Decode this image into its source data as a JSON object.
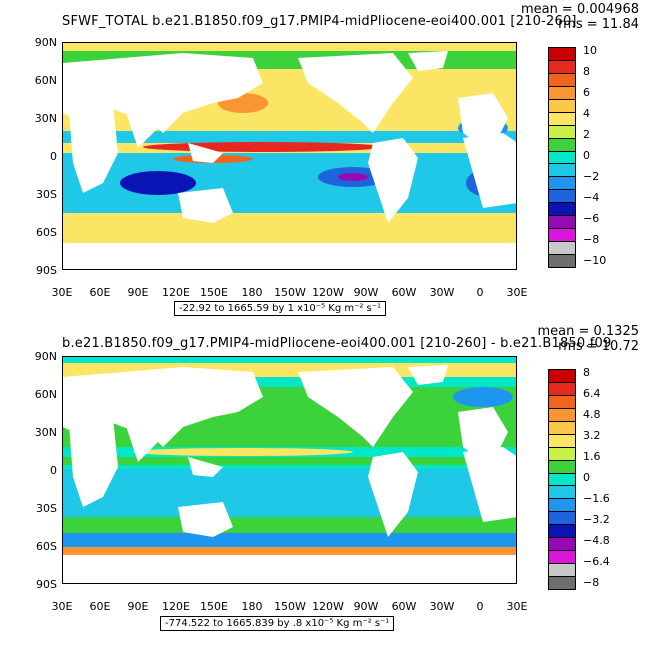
{
  "panels": [
    {
      "title": "SFWF_TOTAL  b.e21.B1850.f09_g17.PMIP4-midPliocene-eoi400.001  [210-260]",
      "mean": "mean = 0.004968",
      "rms": "rms = 11.84",
      "info": "-22.92 to 1665.59 by 1 x10⁻⁵ Kg m⁻² s⁻¹",
      "colorbar_labels": [
        "10",
        "8",
        "6",
        "4",
        "2",
        "0",
        "−2",
        "−4",
        "−6",
        "−8",
        "−10"
      ],
      "colors": [
        "#c80000",
        "#e6281e",
        "#f0641e",
        "#fa9632",
        "#fac846",
        "#fae664",
        "#c8f046",
        "#3cd23c",
        "#00e6c8",
        "#1ec8e6",
        "#1e96f0",
        "#1e64dc",
        "#0a14b4",
        "#960ab4",
        "#dc14dc",
        "#c8c8c8",
        "#6e6e6e"
      ]
    },
    {
      "title": "b.e21.B1850.f09_g17.PMIP4-midPliocene-eoi400.001  [210-260] - b.e21.B1850.f09",
      "mean": "mean = 0.1325",
      "rms": "rms = 10.72",
      "info": "-774.522 to 1665.839 by .8 x10⁻⁵ Kg m⁻² s⁻¹",
      "colorbar_labels": [
        "8",
        "6.4",
        "4.8",
        "3.2",
        "1.6",
        "0",
        "−1.6",
        "−3.2",
        "−4.8",
        "−6.4",
        "−8"
      ],
      "colors": [
        "#c80000",
        "#e6281e",
        "#f0641e",
        "#fa9632",
        "#fac846",
        "#fae664",
        "#c8f046",
        "#3cd23c",
        "#00e6c8",
        "#1ec8e6",
        "#1e96f0",
        "#1e64dc",
        "#0a14b4",
        "#960ab4",
        "#dc14dc",
        "#c8c8c8",
        "#6e6e6e"
      ]
    }
  ],
  "axes": {
    "y_labels": [
      "90N",
      "60N",
      "30N",
      "0",
      "30S",
      "60S",
      "90S"
    ],
    "x_labels": [
      "30E",
      "60E",
      "90E",
      "120E",
      "150E",
      "180",
      "150W",
      "120W",
      "90W",
      "60W",
      "30W",
      "0",
      "30E"
    ]
  }
}
